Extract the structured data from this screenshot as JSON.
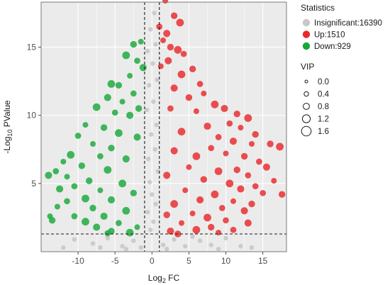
{
  "chart_data": {
    "type": "scatter",
    "xlabel": {
      "main": "Log",
      "sub": "2",
      "rest": " FC"
    },
    "ylabel": {
      "main": "-Log",
      "sub": "10",
      "rest": " PValue"
    },
    "xlim": [
      -15,
      18.2
    ],
    "ylim": [
      0,
      18.3
    ],
    "x_ticks": [
      -10,
      -5,
      0,
      5,
      10,
      15
    ],
    "x_tick_labels": [
      "-10",
      "-5",
      "0",
      "5",
      "10",
      "15"
    ],
    "y_ticks": [
      5,
      10,
      15
    ],
    "y_tick_labels": [
      "5",
      "10",
      "15"
    ],
    "grid": true,
    "panel_background": "#ebebeb",
    "threshold_lines": {
      "x": [
        -1,
        1
      ],
      "y": 1.3
    },
    "legend": {
      "placement": "right",
      "statistics_title": "Statistics",
      "entries": [
        {
          "label": "Insignificant:16390",
          "color": "#c8c8c8"
        },
        {
          "label": "Up:1510",
          "color": "#e8282b"
        },
        {
          "label": "Down:929",
          "color": "#18a83a"
        }
      ],
      "size_title": "VIP",
      "size_entries": [
        "0.0",
        "0.4",
        "0.8",
        "1.2",
        "1.6"
      ]
    },
    "series": [
      {
        "name": "Up:1510",
        "color": "#e8282b",
        "points": [
          [
            1.8,
            18.4
          ],
          [
            3.0,
            17.3
          ],
          [
            3.8,
            16.8
          ],
          [
            1.0,
            16.5
          ],
          [
            2.0,
            16.0
          ],
          [
            1.5,
            15.5
          ],
          [
            2.5,
            15.0
          ],
          [
            3.5,
            14.8
          ],
          [
            4.3,
            14.5
          ],
          [
            2.2,
            14.0
          ],
          [
            1.2,
            13.6
          ],
          [
            5.5,
            13.4
          ],
          [
            4.0,
            13.0
          ],
          [
            6.5,
            12.3
          ],
          [
            3.0,
            12.0
          ],
          [
            7.0,
            11.6
          ],
          [
            5.0,
            11.3
          ],
          [
            8.5,
            10.8
          ],
          [
            2.5,
            10.5
          ],
          [
            9.8,
            10.5
          ],
          [
            6.0,
            10.3
          ],
          [
            11.5,
            10.1
          ],
          [
            13.0,
            9.8
          ],
          [
            10.5,
            9.4
          ],
          [
            7.5,
            9.2
          ],
          [
            12.0,
            9.1
          ],
          [
            14.0,
            8.6
          ],
          [
            4.0,
            8.8
          ],
          [
            9.0,
            8.4
          ],
          [
            11.0,
            8.1
          ],
          [
            13.5,
            7.9
          ],
          [
            16.0,
            7.9
          ],
          [
            17.3,
            7.7
          ],
          [
            8.0,
            7.6
          ],
          [
            3.0,
            7.4
          ],
          [
            10.0,
            7.2
          ],
          [
            12.5,
            7.0
          ],
          [
            6.0,
            7.0
          ],
          [
            14.5,
            6.6
          ],
          [
            15.5,
            6.2
          ],
          [
            5.0,
            6.2
          ],
          [
            11.5,
            6.0
          ],
          [
            9.0,
            5.9
          ],
          [
            13.0,
            5.6
          ],
          [
            2.0,
            5.6
          ],
          [
            16.5,
            5.2
          ],
          [
            7.0,
            5.3
          ],
          [
            10.5,
            5.0
          ],
          [
            14.0,
            4.8
          ],
          [
            12.0,
            4.6
          ],
          [
            4.5,
            4.5
          ],
          [
            17.6,
            4.2
          ],
          [
            8.5,
            4.2
          ],
          [
            15.0,
            4.3
          ],
          [
            6.5,
            3.8
          ],
          [
            11.0,
            3.7
          ],
          [
            13.5,
            3.5
          ],
          [
            3.0,
            3.5
          ],
          [
            9.5,
            3.2
          ],
          [
            12.5,
            3.0
          ],
          [
            5.5,
            2.8
          ],
          [
            2.0,
            2.7
          ],
          [
            7.5,
            2.5
          ],
          [
            10.0,
            2.3
          ],
          [
            13.0,
            2.1
          ],
          [
            4.0,
            2.1
          ],
          [
            8.0,
            1.8
          ],
          [
            6.0,
            1.6
          ],
          [
            11.0,
            1.6
          ],
          [
            2.5,
            1.5
          ],
          [
            9.0,
            1.4
          ],
          [
            3.5,
            1.3
          ]
        ]
      },
      {
        "name": "Down:929",
        "color": "#18a83a",
        "points": [
          [
            -1.5,
            15.4
          ],
          [
            -2.5,
            15.2
          ],
          [
            -3.5,
            14.4
          ],
          [
            -2.0,
            14.0
          ],
          [
            -1.2,
            13.5
          ],
          [
            -3.0,
            12.9
          ],
          [
            -4.5,
            12.2
          ],
          [
            -5.5,
            12.3
          ],
          [
            -2.5,
            11.6
          ],
          [
            -6.0,
            11.3
          ],
          [
            -4.0,
            11.0
          ],
          [
            -1.8,
            10.5
          ],
          [
            -7.5,
            10.6
          ],
          [
            -5.0,
            10.2
          ],
          [
            -3.0,
            10.0
          ],
          [
            -9.0,
            9.3
          ],
          [
            -6.5,
            9.1
          ],
          [
            -4.5,
            8.7
          ],
          [
            -10.0,
            8.5
          ],
          [
            -2.0,
            8.4
          ],
          [
            -8.0,
            7.9
          ],
          [
            -5.5,
            7.6
          ],
          [
            -11.0,
            7.1
          ],
          [
            -7.0,
            7.0
          ],
          [
            -3.5,
            6.8
          ],
          [
            -12.0,
            6.6
          ],
          [
            -9.5,
            6.3
          ],
          [
            -6.0,
            6.0
          ],
          [
            -13.0,
            5.9
          ],
          [
            -14.0,
            5.6
          ],
          [
            -11.5,
            5.5
          ],
          [
            -8.5,
            5.2
          ],
          [
            -4.0,
            5.0
          ],
          [
            -10.5,
            4.8
          ],
          [
            -12.5,
            4.6
          ],
          [
            -7.0,
            4.5
          ],
          [
            -2.5,
            4.3
          ],
          [
            -9.0,
            3.9
          ],
          [
            -11.5,
            3.7
          ],
          [
            -5.5,
            3.8
          ],
          [
            -12.8,
            3.3
          ],
          [
            -8.0,
            3.2
          ],
          [
            -3.5,
            3.0
          ],
          [
            -10.5,
            2.6
          ],
          [
            -6.5,
            2.6
          ],
          [
            -13.8,
            2.6
          ],
          [
            -13.5,
            2.3
          ],
          [
            -9.0,
            2.2
          ],
          [
            -4.5,
            2.1
          ],
          [
            -7.5,
            1.8
          ],
          [
            -2.0,
            1.8
          ],
          [
            -5.5,
            1.5
          ],
          [
            -3.0,
            1.4
          ],
          [
            -6.0,
            1.35
          ]
        ]
      },
      {
        "name": "Insignificant:16390",
        "color": "#c8c8c8",
        "points": [
          [
            0.3,
            17.5
          ],
          [
            -0.2,
            16.3
          ],
          [
            0.5,
            15.2
          ],
          [
            -0.6,
            14.7
          ],
          [
            0.1,
            13.8
          ],
          [
            0.7,
            12.6
          ],
          [
            -0.4,
            12.2
          ],
          [
            0.2,
            11.0
          ],
          [
            -0.7,
            10.4
          ],
          [
            0.6,
            9.3
          ],
          [
            -0.1,
            8.6
          ],
          [
            0.4,
            7.5
          ],
          [
            -0.5,
            6.8
          ],
          [
            0.8,
            5.9
          ],
          [
            -0.3,
            5.1
          ],
          [
            0.0,
            4.2
          ],
          [
            0.5,
            3.5
          ],
          [
            -0.6,
            2.9
          ],
          [
            0.2,
            2.2
          ],
          [
            -0.2,
            1.6
          ],
          [
            -10.5,
            0.9
          ],
          [
            -8.0,
            0.6
          ],
          [
            -6.0,
            1.0
          ],
          [
            -4.0,
            0.4
          ],
          [
            -2.5,
            0.8
          ],
          [
            -1.5,
            0.3
          ],
          [
            1.5,
            0.5
          ],
          [
            3.0,
            0.9
          ],
          [
            4.5,
            0.4
          ],
          [
            6.5,
            0.8
          ],
          [
            8.0,
            0.5
          ],
          [
            10.0,
            1.0
          ],
          [
            12.0,
            0.4
          ],
          [
            13.5,
            0.3
          ],
          [
            -12.0,
            0.3
          ],
          [
            2.0,
            0.2
          ],
          [
            -3.5,
            0.2
          ],
          [
            5.5,
            1.1
          ],
          [
            -7.0,
            0.3
          ],
          [
            9.0,
            0.2
          ]
        ]
      }
    ]
  }
}
